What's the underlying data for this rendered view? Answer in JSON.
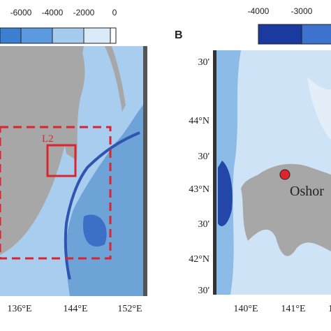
{
  "panel_a": {
    "colorbar": {
      "ticks": [
        "-6000",
        "-4000",
        "-2000",
        "0"
      ]
    },
    "x_labels": [
      "136°E",
      "144°E",
      "152°E"
    ],
    "box_label": "L2"
  },
  "panel_b": {
    "label": "B",
    "colorbar": {
      "ticks": [
        "-4000",
        "-3000"
      ]
    },
    "y_labels": [
      "30'",
      "44°N",
      "30'",
      "43°N",
      "30'",
      "42°N",
      "30'"
    ],
    "x_labels": [
      "140°E",
      "141°E",
      "1"
    ],
    "site_label": "Oshor"
  }
}
